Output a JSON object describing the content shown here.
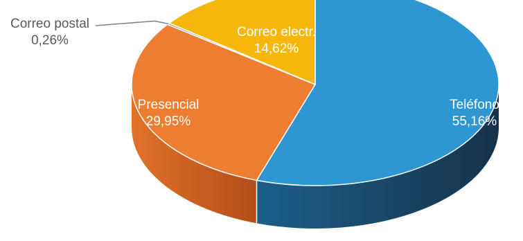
{
  "chart_data": {
    "type": "pie",
    "style": "3d-exploded-none",
    "start_angle_deg": 0,
    "direction": "clockwise",
    "slices": [
      {
        "label": "Teléfono",
        "value": 55.16,
        "display": "55,16%",
        "color": "#2e97d1",
        "side_color": "#1f4f70",
        "label_color": "#ffffff"
      },
      {
        "label": "Presencial",
        "value": 29.95,
        "display": "29,95%",
        "color": "#ed7d31",
        "side_color": "#b9561c",
        "label_color": "#ffffff"
      },
      {
        "label": "Correo postal",
        "value": 0.26,
        "display": "0,26%",
        "color": "#a5a5a5",
        "side_color": "#7d7d7d",
        "label_color": "#595959",
        "callout": true
      },
      {
        "label": "Correo electr.",
        "value": 14.62,
        "display": "14,62%",
        "color": "#f6b70a",
        "side_color": "#b88a08",
        "label_color": "#ffffff"
      }
    ]
  }
}
